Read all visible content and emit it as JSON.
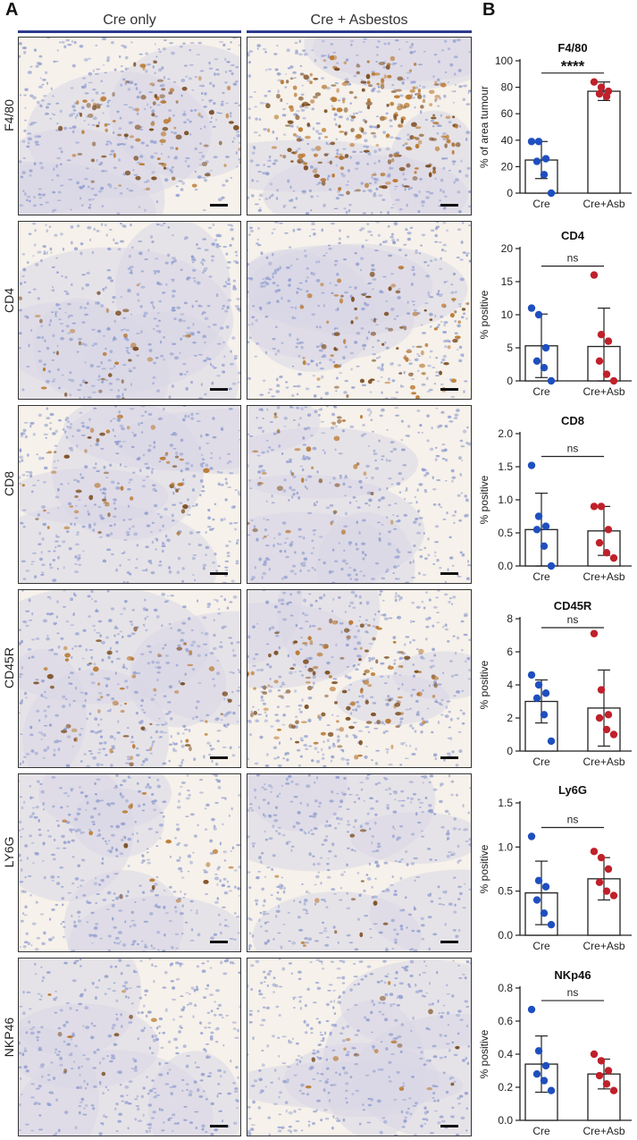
{
  "panels": {
    "a": "A",
    "b": "B"
  },
  "columns": [
    "Cre only",
    "Cre + Asbestos"
  ],
  "colors": {
    "rule": "#2b3a8e",
    "cre": "#1f4fbf",
    "asb": "#c0202a",
    "tissue_bg": "#f6f1ea",
    "hema": "#8f9ccf",
    "dab": "#b9772e"
  },
  "rows": [
    {
      "label": "F4/80",
      "stain_cre": 0.35,
      "stain_asb": 0.85
    },
    {
      "label": "CD4",
      "stain_cre": 0.12,
      "stain_asb": 0.3
    },
    {
      "label": "CD8",
      "stain_cre": 0.18,
      "stain_asb": 0.15
    },
    {
      "label": "CD45R",
      "stain_cre": 0.2,
      "stain_asb": 0.45
    },
    {
      "label": "LY6G",
      "stain_cre": 0.06,
      "stain_asb": 0.05
    },
    {
      "label": "NKP46",
      "stain_cre": 0.04,
      "stain_asb": 0.06
    }
  ],
  "chart_data": [
    {
      "type": "bar",
      "title": "F4/80",
      "ylabel": "% of area tumour",
      "categories": [
        "Cre",
        "Cre+Asb"
      ],
      "ylim": [
        0,
        100
      ],
      "yticks": [
        0,
        20,
        40,
        60,
        80,
        100
      ],
      "yticklabels": [
        "0",
        "20",
        "40",
        "60",
        "80",
        "100"
      ],
      "means": [
        25,
        77
      ],
      "err": [
        14,
        7
      ],
      "significance": "****",
      "points": [
        [
          39,
          39,
          26,
          24,
          14,
          0
        ],
        [
          84,
          80,
          77,
          75,
          73
        ]
      ]
    },
    {
      "type": "bar",
      "title": "CD4",
      "ylabel": "% positive",
      "categories": [
        "Cre",
        "Cre+Asb"
      ],
      "ylim": [
        0,
        20
      ],
      "yticks": [
        0,
        5,
        10,
        15,
        20
      ],
      "yticklabels": [
        "0",
        "5",
        "10",
        "15",
        "20"
      ],
      "means": [
        5.3,
        5.2
      ],
      "err": [
        4.8,
        5.8
      ],
      "significance": "ns",
      "points": [
        [
          11,
          10,
          5,
          3,
          2,
          0
        ],
        [
          16,
          7,
          6,
          3,
          1,
          0
        ]
      ]
    },
    {
      "type": "bar",
      "title": "CD8",
      "ylabel": "% positive",
      "categories": [
        "Cre",
        "Cre+Asb"
      ],
      "ylim": [
        0,
        2.0
      ],
      "yticks": [
        0,
        0.5,
        1.0,
        1.5,
        2.0
      ],
      "yticklabels": [
        "0.0",
        "0.5",
        "1.0",
        "1.5",
        "2.0"
      ],
      "means": [
        0.55,
        0.53
      ],
      "err": [
        0.55,
        0.37
      ],
      "significance": "ns",
      "points": [
        [
          1.52,
          0.75,
          0.6,
          0.55,
          0.3,
          0.0
        ],
        [
          0.9,
          0.9,
          0.55,
          0.35,
          0.2,
          0.12
        ]
      ]
    },
    {
      "type": "bar",
      "title": "CD45R",
      "ylabel": "% positive",
      "categories": [
        "Cre",
        "Cre+Asb"
      ],
      "ylim": [
        0,
        8
      ],
      "yticks": [
        0,
        2,
        4,
        6,
        8
      ],
      "yticklabels": [
        "0",
        "2",
        "4",
        "6",
        "8"
      ],
      "means": [
        3.0,
        2.6
      ],
      "err": [
        1.3,
        2.3
      ],
      "significance": "ns",
      "points": [
        [
          4.6,
          4.0,
          3.5,
          3.2,
          2.2,
          0.6
        ],
        [
          7.1,
          3.7,
          2.2,
          2.0,
          1.3,
          1.0
        ]
      ]
    },
    {
      "type": "bar",
      "title": "Ly6G",
      "ylabel": "% positive",
      "categories": [
        "Cre",
        "Cre+Asb"
      ],
      "ylim": [
        0,
        1.5
      ],
      "yticks": [
        0,
        0.5,
        1.0,
        1.5
      ],
      "yticklabels": [
        "0.0",
        "0.5",
        "1.0",
        "1.5"
      ],
      "means": [
        0.48,
        0.64
      ],
      "err": [
        0.36,
        0.24
      ],
      "significance": "ns",
      "points": [
        [
          1.12,
          0.62,
          0.55,
          0.4,
          0.25,
          0.12
        ],
        [
          0.95,
          0.88,
          0.75,
          0.6,
          0.5,
          0.45
        ]
      ]
    },
    {
      "type": "bar",
      "title": "NKp46",
      "ylabel": "% positive",
      "categories": [
        "Cre",
        "Cre+Asb"
      ],
      "ylim": [
        0,
        0.8
      ],
      "yticks": [
        0,
        0.2,
        0.4,
        0.6,
        0.8
      ],
      "yticklabels": [
        "0.0",
        "0.2",
        "0.4",
        "0.6",
        "0.8"
      ],
      "means": [
        0.34,
        0.28
      ],
      "err": [
        0.17,
        0.09
      ],
      "significance": "ns",
      "points": [
        [
          0.67,
          0.42,
          0.33,
          0.28,
          0.24,
          0.18
        ],
        [
          0.4,
          0.36,
          0.3,
          0.27,
          0.22,
          0.18
        ]
      ]
    }
  ]
}
